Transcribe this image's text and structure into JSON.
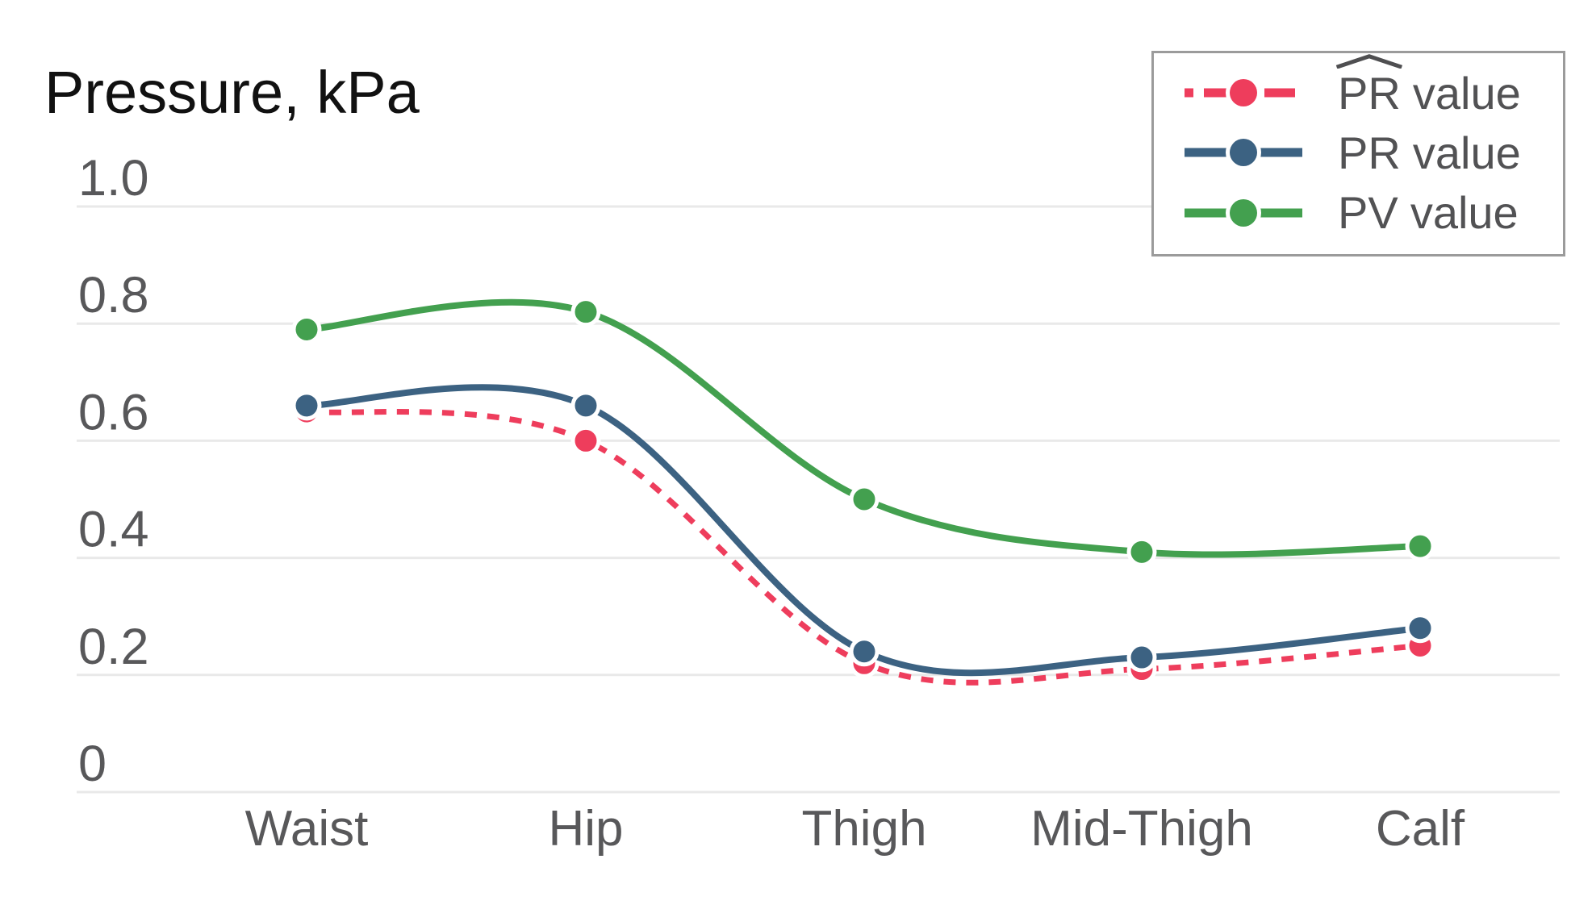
{
  "title": "Pressure, kPa",
  "legend": {
    "items": [
      {
        "id": "pr-hat",
        "prefix": "PR",
        "suffix": "value",
        "hat": true,
        "color": "#ee3d5c",
        "line": "dash-dot"
      },
      {
        "id": "pr",
        "prefix": "PR",
        "suffix": "value",
        "hat": false,
        "color": "#3c6282",
        "line": "solid"
      },
      {
        "id": "pv",
        "prefix": "PV",
        "suffix": "value",
        "hat": false,
        "color": "#43a04f",
        "line": "solid"
      }
    ]
  },
  "axes": {
    "yticks": [
      "0",
      "0.2",
      "0.4",
      "0.6",
      "0.8",
      "1.0"
    ],
    "categories": [
      "Waist",
      "Hip",
      "Thigh",
      "Mid-Thigh",
      "Calf"
    ]
  },
  "chart_data": {
    "type": "line",
    "title": "Pressure, kPa",
    "ylabel": "Pressure, kPa",
    "xlabel": "",
    "categories": [
      "Waist",
      "Hip",
      "Thigh",
      "Mid-Thigh",
      "Calf"
    ],
    "series": [
      {
        "name": "PR value",
        "hat_over_name": true,
        "color": "#ee3d5c",
        "dashed": true,
        "marker": "circle",
        "values": [
          0.65,
          0.6,
          0.22,
          0.21,
          0.25
        ]
      },
      {
        "name": "PR value",
        "hat_over_name": false,
        "color": "#3c6282",
        "dashed": false,
        "marker": "circle",
        "values": [
          0.66,
          0.66,
          0.24,
          0.23,
          0.28
        ]
      },
      {
        "name": "PV value",
        "hat_over_name": false,
        "color": "#43a04f",
        "dashed": false,
        "marker": "circle",
        "values": [
          0.79,
          0.82,
          0.5,
          0.41,
          0.42
        ]
      }
    ],
    "ylim": [
      0,
      1.0
    ],
    "ytick_step": 0.2,
    "grid": "horizontal",
    "curve": "smooth",
    "legend_position": "top-right",
    "colors": {
      "gridline": "#e9e9e9",
      "axis_text": "#58585a",
      "title_text": "#111111",
      "legend_border": "#9b9b9b",
      "legend_text": "#525254"
    }
  }
}
